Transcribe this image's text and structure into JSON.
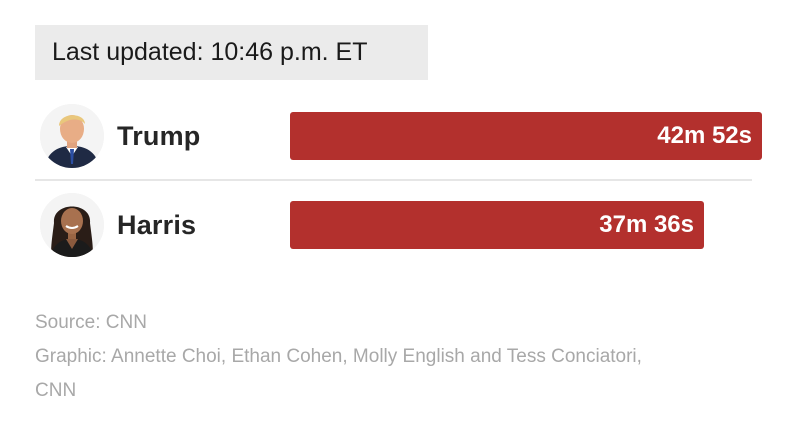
{
  "updated": "Last updated: 10:46 p.m. ET",
  "chart_data": {
    "type": "bar",
    "orientation": "horizontal",
    "categories": [
      "Trump",
      "Harris"
    ],
    "values_seconds": [
      2572,
      2256
    ],
    "value_labels": [
      "42m 52s",
      "37m 36s"
    ],
    "bar_color": "#b3302d"
  },
  "candidates": [
    {
      "name": "Trump",
      "avatar": "trump-portrait"
    },
    {
      "name": "Harris",
      "avatar": "harris-portrait"
    }
  ],
  "footer": {
    "source": "Source: CNN",
    "graphic_line1": "Graphic: Annette Choi, Ethan Cohen, Molly English and Tess Conciatori,",
    "graphic_line2": "CNN"
  }
}
